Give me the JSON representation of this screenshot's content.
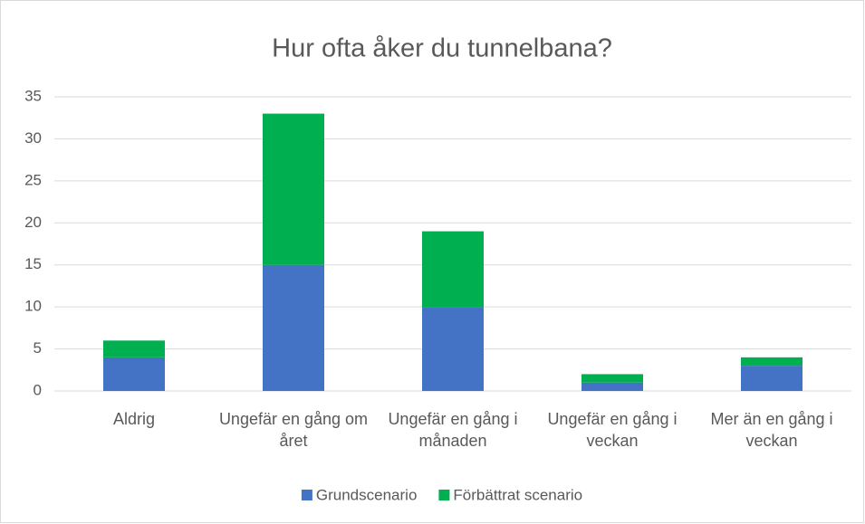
{
  "chart_data": {
    "type": "stacked_bar",
    "title": "Hur ofta åker du tunnelbana?",
    "categories": [
      "Aldrig",
      "Ungefär en gång om året",
      "Ungefär en gång i månaden",
      "Ungefär en gång i veckan",
      "Mer än en gång i veckan"
    ],
    "series": [
      {
        "name": "Grundscenario",
        "color": "#4472c4",
        "values": [
          4,
          15,
          10,
          1,
          3
        ]
      },
      {
        "name": "Förbättrat scenario",
        "color": "#00b050",
        "values": [
          2,
          18,
          9,
          1,
          1
        ]
      }
    ],
    "ylim": [
      0,
      35
    ],
    "yticks": [
      0,
      5,
      10,
      15,
      20,
      25,
      30,
      35
    ],
    "grid": true,
    "legend": "bottom"
  }
}
